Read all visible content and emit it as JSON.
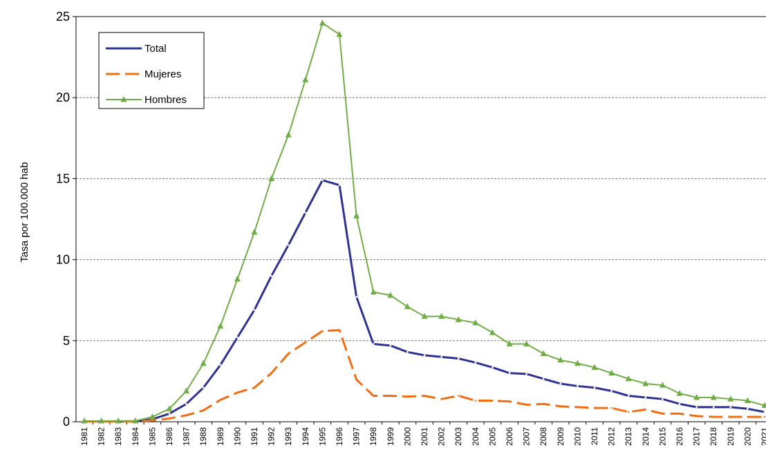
{
  "chart_data": {
    "type": "line",
    "title": "",
    "xlabel": "",
    "ylabel": "Tasa por 100.000 hab",
    "ylim": [
      0,
      25
    ],
    "yticks": [
      0,
      5,
      10,
      15,
      20,
      25
    ],
    "grid": "horizontal dashed",
    "legend_position": "top-left",
    "categories": [
      "1981",
      "1982",
      "1983",
      "1984",
      "1985",
      "1986",
      "1987",
      "1988",
      "1989",
      "1990",
      "1991",
      "1992",
      "1993",
      "1994",
      "1995",
      "1996",
      "1997",
      "1998",
      "1999",
      "2000",
      "2001",
      "2002",
      "2003",
      "2004",
      "2005",
      "2006",
      "2007",
      "2008",
      "2009",
      "2010",
      "2011",
      "2012",
      "2013",
      "2014",
      "2015",
      "2016",
      "2017",
      "2018",
      "2019",
      "2020",
      "2021"
    ],
    "series": [
      {
        "name": "Total",
        "color": "#2e3192",
        "style": "solid",
        "values": [
          0.02,
          0.02,
          0.02,
          0.03,
          0.15,
          0.5,
          1.1,
          2.1,
          3.5,
          5.2,
          6.9,
          9.0,
          10.9,
          12.9,
          14.9,
          14.6,
          7.7,
          4.8,
          4.7,
          4.3,
          4.1,
          4.0,
          3.9,
          3.65,
          3.35,
          3.0,
          2.95,
          2.65,
          2.35,
          2.2,
          2.1,
          1.9,
          1.6,
          1.5,
          1.4,
          1.1,
          0.9,
          0.9,
          0.9,
          0.8,
          0.6
        ]
      },
      {
        "name": "Mujeres",
        "color": "#f26c12",
        "style": "dashed",
        "values": [
          0.02,
          0.02,
          0.02,
          0.02,
          0.08,
          0.2,
          0.4,
          0.7,
          1.35,
          1.8,
          2.1,
          3.0,
          4.2,
          4.9,
          5.6,
          5.65,
          2.6,
          1.6,
          1.6,
          1.55,
          1.6,
          1.4,
          1.6,
          1.3,
          1.3,
          1.25,
          1.05,
          1.1,
          0.95,
          0.9,
          0.85,
          0.85,
          0.6,
          0.75,
          0.5,
          0.5,
          0.35,
          0.3,
          0.3,
          0.3,
          0.3
        ]
      },
      {
        "name": "Hombres",
        "color": "#70ad47",
        "style": "solid",
        "values": [
          0.05,
          0.05,
          0.05,
          0.05,
          0.3,
          0.8,
          1.9,
          3.6,
          5.9,
          8.8,
          11.7,
          15.0,
          17.7,
          21.1,
          24.6,
          23.9,
          12.7,
          8.0,
          7.8,
          7.1,
          6.5,
          6.5,
          6.3,
          6.1,
          5.5,
          4.8,
          4.8,
          4.2,
          3.8,
          3.6,
          3.35,
          3.0,
          2.65,
          2.35,
          2.25,
          1.75,
          1.5,
          1.5,
          1.4,
          1.3,
          1.0
        ]
      }
    ]
  }
}
